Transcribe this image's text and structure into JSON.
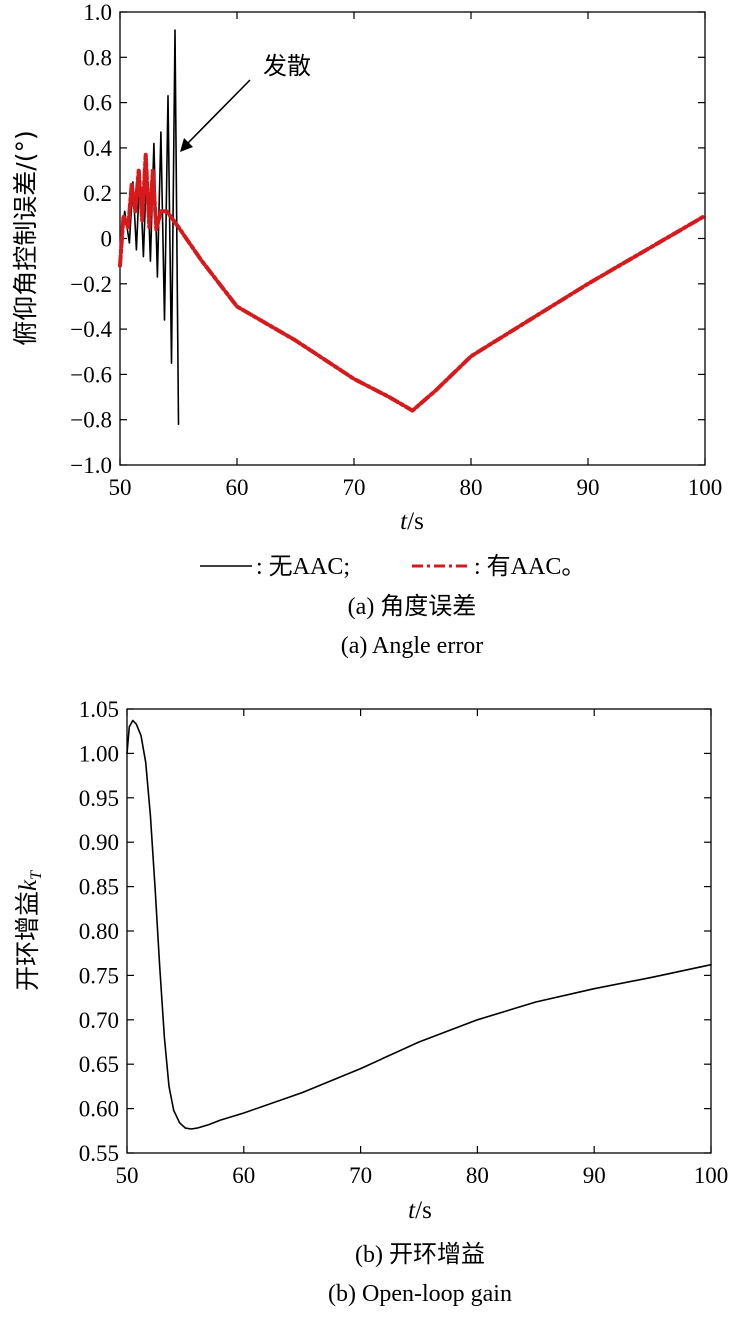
{
  "chart_data": [
    {
      "type": "line",
      "ylabel": "俯仰角控制误差/(°)",
      "xlabel_var": "t",
      "xlabel_unit": "/s",
      "xlim": [
        50,
        100
      ],
      "ylim": [
        -1.0,
        1.0
      ],
      "x_ticks": [
        "50",
        "60",
        "70",
        "80",
        "90",
        "100"
      ],
      "y_ticks": [
        "1.0",
        "0.8",
        "0.6",
        "0.4",
        "0.2",
        "0",
        "−0.2",
        "−0.4",
        "−0.6",
        "−0.8",
        "−1.0"
      ],
      "annotation": "发散",
      "legend": {
        "entry1": ": 无AAC;",
        "entry2": ": 有AAC。"
      },
      "caption_cn": "(a) 角度误差",
      "caption_en": "(a) Angle error",
      "series": [
        {
          "name": "无AAC",
          "color": "#000000",
          "style": "solid",
          "x": [
            50.0,
            50.4,
            50.8,
            51.1,
            51.4,
            51.7,
            52.0,
            52.3,
            52.6,
            52.9,
            53.2,
            53.5,
            53.8,
            54.1,
            54.4,
            54.7,
            55.0
          ],
          "y": [
            -0.1,
            0.12,
            -0.02,
            0.25,
            -0.05,
            0.3,
            -0.08,
            0.35,
            -0.1,
            0.42,
            -0.17,
            0.47,
            -0.36,
            0.63,
            -0.55,
            0.92,
            -0.82
          ]
        },
        {
          "name": "有AAC",
          "color": "#d7191c",
          "style": "dashed",
          "x": [
            50.0,
            50.3,
            50.7,
            51.0,
            51.3,
            51.6,
            51.9,
            52.2,
            52.5,
            52.8,
            53.1,
            53.5,
            54.0,
            55.0,
            57.0,
            60.0,
            65.0,
            70.0,
            73.0,
            75.0,
            77.0,
            80.0,
            85.0,
            90.0,
            95.0,
            100.0
          ],
          "y": [
            -0.12,
            0.1,
            0.05,
            0.24,
            0.12,
            0.3,
            0.08,
            0.37,
            0.05,
            0.3,
            0.04,
            0.12,
            0.12,
            0.05,
            -0.1,
            -0.3,
            -0.45,
            -0.62,
            -0.7,
            -0.76,
            -0.67,
            -0.52,
            -0.36,
            -0.2,
            -0.05,
            0.1
          ]
        }
      ]
    },
    {
      "type": "line",
      "ylabel": "开环增益kT",
      "xlabel_var": "t",
      "xlabel_unit": "/s",
      "xlim": [
        50,
        100
      ],
      "ylim": [
        0.55,
        1.05
      ],
      "x_ticks": [
        "50",
        "60",
        "70",
        "80",
        "90",
        "100"
      ],
      "y_ticks": [
        "1.05",
        "1.00",
        "0.95",
        "0.90",
        "0.85",
        "0.80",
        "0.75",
        "0.70",
        "0.65",
        "0.60",
        "0.55"
      ],
      "caption_cn": "(b) 开环增益",
      "caption_en": "(b) Open-loop gain",
      "series": [
        {
          "color": "#000000",
          "style": "solid",
          "x": [
            50.0,
            50.2,
            50.5,
            50.8,
            51.2,
            51.6,
            52.0,
            52.4,
            52.8,
            53.2,
            53.6,
            54.0,
            54.5,
            55.0,
            55.5,
            56.0,
            57.0,
            58.0,
            60.0,
            65.0,
            70.0,
            75.0,
            80.0,
            85.0,
            90.0,
            95.0,
            100.0
          ],
          "y": [
            1.0,
            1.03,
            1.037,
            1.033,
            1.02,
            0.99,
            0.93,
            0.85,
            0.76,
            0.68,
            0.625,
            0.598,
            0.584,
            0.578,
            0.577,
            0.578,
            0.582,
            0.587,
            0.595,
            0.618,
            0.645,
            0.675,
            0.7,
            0.72,
            0.735,
            0.748,
            0.762
          ]
        }
      ]
    }
  ]
}
